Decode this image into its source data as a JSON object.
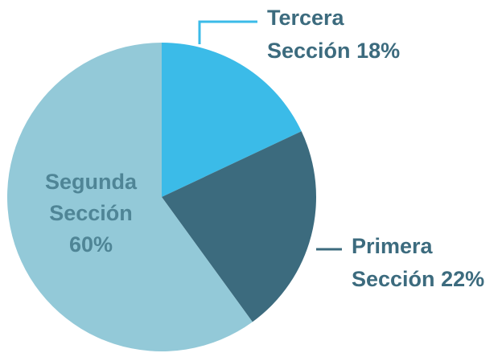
{
  "chart_data": {
    "type": "pie",
    "categories": [
      "Tercera Sección",
      "Primera Sección",
      "Segunda Sección"
    ],
    "values": [
      18,
      22,
      60
    ],
    "value_labels": [
      "18%",
      "22%",
      "60%"
    ],
    "colors": [
      "#3bbbe8",
      "#3c6b7e",
      "#93c9d8"
    ]
  }
}
